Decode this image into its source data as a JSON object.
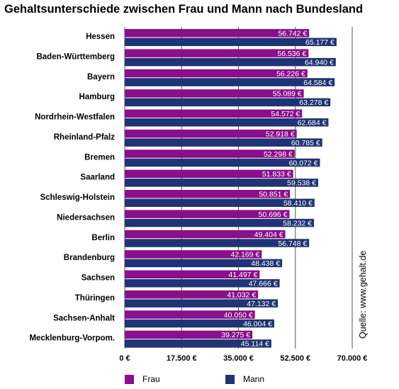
{
  "chart_data": {
    "type": "bar",
    "orientation": "horizontal",
    "title": "Gehaltsunterschiede zwischen Frau und Mann nach Bundesland",
    "categories": [
      "Hessen",
      "Baden-Württemberg",
      "Bayern",
      "Hamburg",
      "Nordrhein-Westfalen",
      "Rheinland-Pfalz",
      "Bremen",
      "Saarland",
      "Schleswig-Holstein",
      "Niedersachsen",
      "Berlin",
      "Brandenburg",
      "Sachsen",
      "Thüringen",
      "Sachsen-Anhalt",
      "Mecklenburg-Vorpom."
    ],
    "series": [
      {
        "name": "Frau",
        "color": "#8b0e8b",
        "values": [
          56742,
          56536,
          56226,
          55089,
          54572,
          52918,
          52298,
          51833,
          50851,
          50696,
          49404,
          42169,
          41497,
          41032,
          40050,
          39275
        ],
        "labels": [
          "56.742 €",
          "56.536 €",
          "56.226 €",
          "55.089 €",
          "54.572 €",
          "52.918 €",
          "52.298 €",
          "51.833 €",
          "50.851 €",
          "50.696 €",
          "49.404 €",
          "42.169 €",
          "41.497 €",
          "41.032 €",
          "40.050 €",
          "39.275 €"
        ]
      },
      {
        "name": "Mann",
        "color": "#1f3474",
        "values": [
          65177,
          64940,
          64584,
          63278,
          62684,
          60785,
          60072,
          59538,
          58410,
          58232,
          56748,
          48438,
          47666,
          47132,
          46004,
          45114
        ],
        "labels": [
          "65.177 €",
          "64.940 €",
          "64.584 €",
          "63.278 €",
          "62.684 €",
          "60.785 €",
          "60.072 €",
          "59.538 €",
          "58.410 €",
          "58.232 €",
          "56.748 €",
          "48.438 €",
          "47.666 €",
          "47.132 €",
          "46.004 €",
          "45.114 €"
        ]
      }
    ],
    "xlim": [
      0,
      70000
    ],
    "xticks": [
      0,
      17500,
      35000,
      52500,
      70000
    ],
    "xtick_labels": [
      "0 €",
      "17.500 €",
      "35.000 €",
      "52.500 €",
      "70.000 €"
    ],
    "grid": true,
    "legend_position": "bottom",
    "source": "Quelle: www.gehalt.de"
  }
}
